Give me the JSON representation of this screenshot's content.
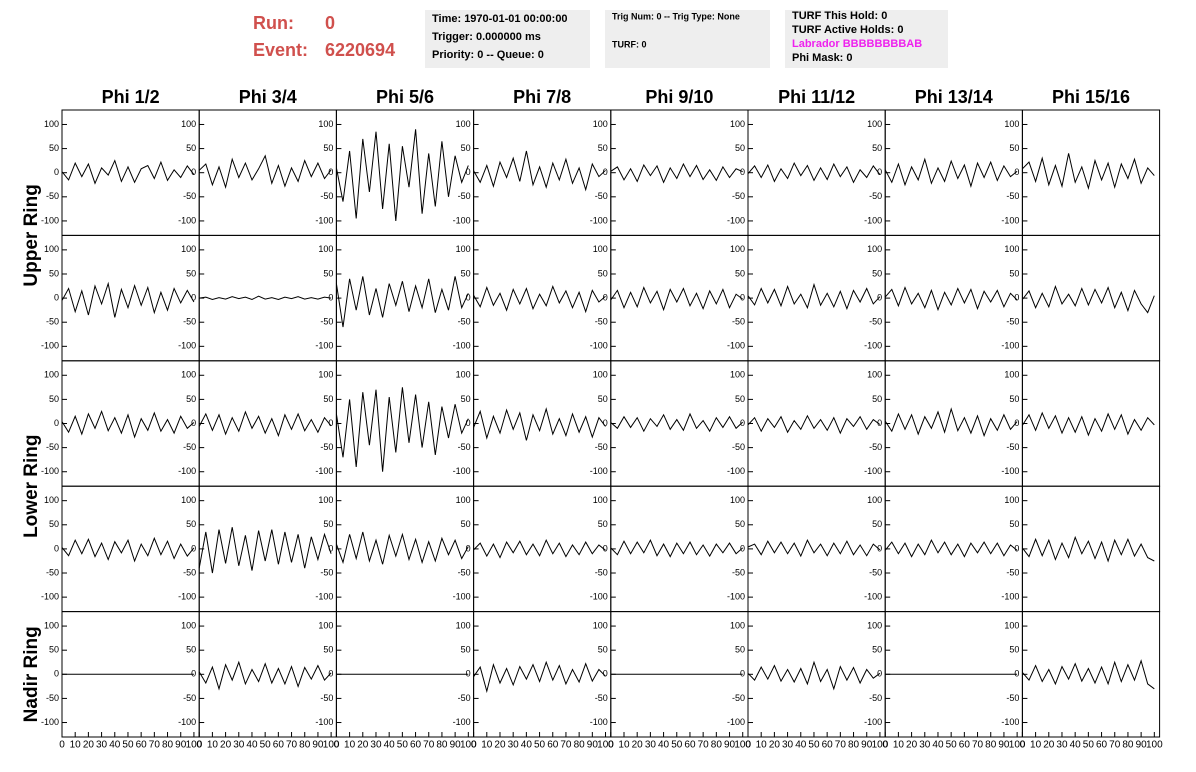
{
  "header": {
    "run_label": "Run:",
    "run": "0",
    "event_label": "Event:",
    "event": "6220694"
  },
  "info": [
    [
      "Time: 1970-01-01 00:00:00",
      "Trigger: 0.000000 ms",
      "Priority: 0 -- Queue: 0"
    ],
    [
      "Trig Num: 0 -- Trig Type: None",
      "TURF: 0"
    ],
    [
      "TURF This Hold: 0",
      "TURF Active Holds: 0",
      "Labrador BBBBBBBBAB",
      "Phi Mask: 0"
    ]
  ],
  "chart_data": {
    "type": "line",
    "columns": [
      "Phi 1/2",
      "Phi 3/4",
      "Phi 5/6",
      "Phi 7/8",
      "Phi 9/10",
      "Phi 11/12",
      "Phi 13/14",
      "Phi 15/16"
    ],
    "rows": [
      "Upper Ring",
      "Lower Ring",
      "Nadir Ring"
    ],
    "color": "#000000",
    "x": [
      0,
      5,
      10,
      15,
      20,
      25,
      30,
      35,
      40,
      45,
      50,
      55,
      60,
      65,
      70,
      75,
      80,
      85,
      90,
      95,
      100
    ],
    "xlim": [
      0,
      104
    ],
    "xticks": [
      0,
      10,
      20,
      30,
      40,
      50,
      60,
      70,
      80,
      90,
      100
    ],
    "ylim": [
      -130,
      130
    ],
    "yticks": [
      -100,
      -50,
      0,
      50,
      100
    ],
    "panels": [
      {
        "values": [
          2,
          -15,
          20,
          -8,
          18,
          -22,
          10,
          -5,
          25,
          -18,
          12,
          -20,
          8,
          15,
          -12,
          22,
          -16,
          6,
          -10,
          14,
          -4
        ]
      },
      {
        "values": [
          5,
          18,
          -25,
          12,
          -30,
          28,
          -10,
          20,
          -15,
          8,
          35,
          -22,
          15,
          -28,
          10,
          -18,
          25,
          -8,
          20,
          -12,
          6
        ]
      },
      {
        "values": [
          10,
          -60,
          45,
          -95,
          70,
          -40,
          85,
          -75,
          60,
          -100,
          55,
          -30,
          90,
          -85,
          40,
          -70,
          65,
          -50,
          35,
          -20,
          15
        ]
      },
      {
        "values": [
          4,
          -20,
          15,
          -28,
          22,
          -10,
          30,
          -18,
          45,
          -25,
          12,
          -30,
          20,
          -15,
          28,
          -22,
          10,
          -35,
          18,
          -8,
          5
        ]
      },
      {
        "values": [
          3,
          12,
          -15,
          8,
          -18,
          16,
          -6,
          14,
          -20,
          10,
          -12,
          18,
          -8,
          15,
          -14,
          6,
          -16,
          12,
          -10,
          8,
          2
        ]
      },
      {
        "values": [
          -2,
          14,
          -10,
          16,
          -18,
          8,
          -12,
          20,
          -6,
          15,
          -16,
          10,
          -14,
          18,
          -8,
          12,
          -20,
          6,
          -10,
          14,
          -4
        ]
      },
      {
        "values": [
          6,
          -20,
          18,
          -25,
          12,
          -15,
          28,
          -22,
          10,
          -18,
          24,
          -12,
          16,
          -28,
          20,
          -10,
          22,
          -16,
          14,
          -8,
          3
        ]
      },
      {
        "values": [
          8,
          22,
          -18,
          30,
          -25,
          15,
          -28,
          40,
          -20,
          12,
          -32,
          25,
          -15,
          20,
          -30,
          18,
          -12,
          28,
          -22,
          10,
          -6
        ]
      },
      {
        "values": [
          -5,
          20,
          -28,
          15,
          -35,
          25,
          -12,
          30,
          -40,
          18,
          -20,
          26,
          -15,
          22,
          -30,
          12,
          -25,
          20,
          -10,
          16,
          -8
        ]
      },
      {
        "values": [
          0,
          2,
          -3,
          1,
          -2,
          3,
          -1,
          2,
          -3,
          4,
          -2,
          1,
          -3,
          2,
          -1,
          3,
          -2,
          1,
          -2,
          2,
          0
        ]
      },
      {
        "values": [
          30,
          -60,
          40,
          -25,
          45,
          -35,
          20,
          -40,
          30,
          -15,
          35,
          -28,
          25,
          -20,
          40,
          -30,
          18,
          -25,
          45,
          -20,
          10
        ]
      },
      {
        "values": [
          6,
          -18,
          22,
          -15,
          10,
          -25,
          18,
          -12,
          20,
          -22,
          8,
          -16,
          24,
          -10,
          15,
          -20,
          12,
          -28,
          16,
          -8,
          4
        ]
      },
      {
        "values": [
          -4,
          16,
          -20,
          12,
          -18,
          22,
          -10,
          14,
          -24,
          18,
          -8,
          20,
          -16,
          10,
          -22,
          15,
          -12,
          18,
          -20,
          8,
          -2
        ]
      },
      {
        "values": [
          5,
          -14,
          20,
          -10,
          18,
          -16,
          24,
          -12,
          8,
          -20,
          28,
          -15,
          10,
          -18,
          14,
          -22,
          16,
          -8,
          20,
          -12,
          3
        ]
      },
      {
        "values": [
          2,
          18,
          -16,
          22,
          -12,
          10,
          -20,
          16,
          -24,
          12,
          -14,
          20,
          -10,
          18,
          -22,
          14,
          -8,
          16,
          -18,
          10,
          -4
        ]
      },
      {
        "values": [
          -3,
          15,
          -20,
          10,
          -18,
          24,
          -12,
          8,
          -16,
          20,
          -14,
          18,
          -10,
          22,
          -20,
          12,
          -26,
          16,
          -12,
          -30,
          5
        ]
      },
      {
        "values": [
          4,
          -18,
          15,
          -22,
          20,
          -10,
          25,
          -15,
          12,
          -20,
          18,
          -28,
          10,
          -14,
          22,
          -16,
          8,
          -20,
          15,
          -10,
          2
        ]
      },
      {
        "values": [
          -6,
          20,
          -14,
          18,
          -22,
          12,
          -16,
          24,
          -10,
          15,
          -20,
          10,
          -25,
          18,
          -12,
          20,
          -15,
          8,
          -18,
          12,
          -5
        ]
      },
      {
        "values": [
          20,
          -70,
          50,
          -90,
          65,
          -45,
          70,
          -100,
          55,
          -60,
          75,
          -40,
          60,
          -50,
          45,
          -65,
          35,
          -30,
          40,
          -20,
          10
        ]
      },
      {
        "values": [
          -8,
          25,
          -30,
          15,
          -20,
          28,
          -12,
          22,
          -35,
          18,
          -15,
          30,
          -22,
          10,
          -25,
          20,
          -18,
          14,
          -28,
          12,
          -6
        ]
      },
      {
        "values": [
          2,
          -10,
          14,
          -8,
          12,
          -16,
          10,
          -6,
          18,
          -12,
          8,
          -14,
          20,
          -10,
          6,
          -16,
          12,
          -8,
          14,
          -10,
          3
        ]
      },
      {
        "values": [
          -3,
          12,
          -16,
          10,
          -8,
          14,
          -18,
          6,
          -12,
          16,
          -10,
          8,
          -14,
          12,
          -20,
          10,
          -6,
          14,
          -12,
          8,
          -2
        ]
      },
      {
        "values": [
          5,
          -16,
          20,
          -12,
          18,
          -22,
          14,
          -10,
          24,
          -18,
          30,
          -15,
          12,
          -20,
          16,
          -25,
          10,
          -14,
          18,
          -12,
          4
        ]
      },
      {
        "values": [
          -4,
          18,
          -14,
          22,
          -10,
          16,
          -20,
          12,
          -18,
          14,
          -24,
          10,
          -16,
          20,
          -12,
          18,
          -22,
          8,
          -14,
          12,
          -3
        ]
      },
      {
        "values": [
          3,
          -14,
          18,
          -10,
          20,
          -16,
          12,
          -22,
          15,
          -8,
          18,
          -25,
          10,
          -14,
          22,
          -12,
          16,
          -20,
          10,
          -15,
          2
        ]
      },
      {
        "values": [
          -40,
          35,
          -50,
          40,
          -30,
          45,
          -35,
          28,
          -45,
          38,
          -25,
          40,
          -32,
          35,
          -28,
          30,
          -40,
          25,
          -22,
          30,
          -10
        ]
      },
      {
        "values": [
          10,
          -28,
          30,
          -20,
          35,
          -25,
          18,
          -32,
          28,
          -15,
          30,
          -22,
          20,
          -28,
          15,
          -25,
          22,
          -12,
          18,
          -20,
          5
        ]
      },
      {
        "values": [
          -2,
          12,
          -15,
          10,
          -18,
          14,
          -8,
          16,
          -12,
          10,
          -14,
          18,
          -10,
          12,
          -16,
          8,
          -12,
          14,
          -10,
          8,
          -3
        ]
      },
      {
        "values": [
          2,
          -12,
          16,
          -10,
          14,
          -8,
          18,
          -14,
          10,
          -16,
          12,
          -10,
          14,
          -12,
          8,
          -15,
          10,
          -8,
          12,
          -10,
          2
        ]
      },
      {
        "values": [
          4,
          10,
          -12,
          16,
          -8,
          14,
          -10,
          12,
          -15,
          18,
          -8,
          10,
          -14,
          12,
          -10,
          16,
          -12,
          8,
          -14,
          10,
          -2
        ]
      },
      {
        "values": [
          -3,
          14,
          -10,
          12,
          -16,
          10,
          -12,
          18,
          -8,
          14,
          -12,
          10,
          -16,
          12,
          -8,
          14,
          -10,
          12,
          -14,
          8,
          -3
        ]
      },
      {
        "values": [
          2,
          -16,
          20,
          -14,
          18,
          -22,
          12,
          -18,
          24,
          -10,
          16,
          -20,
          14,
          -25,
          18,
          -12,
          20,
          -15,
          10,
          -18,
          -25
        ]
      },
      {
        "values": [
          0,
          0,
          0,
          0,
          0,
          0,
          0,
          0,
          0,
          0,
          0,
          0,
          0,
          0,
          0,
          0,
          0,
          0,
          0,
          0,
          0
        ]
      },
      {
        "values": [
          5,
          -18,
          15,
          -30,
          20,
          -12,
          25,
          -20,
          10,
          -15,
          22,
          -18,
          12,
          -20,
          16,
          -25,
          14,
          -10,
          18,
          -12,
          3
        ]
      },
      {
        "values": [
          0,
          0,
          0,
          0,
          0,
          0,
          0,
          0,
          0,
          0,
          0,
          0,
          0,
          0,
          0,
          0,
          0,
          0,
          0,
          0,
          0
        ]
      },
      {
        "values": [
          -5,
          15,
          -35,
          20,
          -18,
          12,
          -22,
          16,
          -10,
          20,
          -15,
          25,
          -12,
          18,
          -20,
          10,
          -16,
          22,
          -14,
          10,
          -4
        ]
      },
      {
        "values": [
          0,
          0,
          0,
          0,
          0,
          0,
          0,
          0,
          0,
          0,
          0,
          0,
          0,
          0,
          0,
          0,
          0,
          0,
          0,
          0,
          0
        ]
      },
      {
        "values": [
          2,
          -12,
          15,
          -10,
          18,
          -14,
          10,
          -16,
          12,
          -20,
          25,
          -15,
          10,
          -30,
          16,
          -12,
          14,
          -18,
          10,
          -8,
          2
        ]
      },
      {
        "values": [
          0,
          0,
          0,
          0,
          0,
          0,
          0,
          0,
          0,
          0,
          0,
          0,
          0,
          0,
          0,
          0,
          0,
          0,
          0,
          0,
          0
        ]
      },
      {
        "values": [
          4,
          -12,
          18,
          -15,
          10,
          -20,
          16,
          -10,
          22,
          -14,
          12,
          -18,
          15,
          -20,
          25,
          -15,
          20,
          -12,
          28,
          -20,
          -30
        ]
      }
    ]
  }
}
